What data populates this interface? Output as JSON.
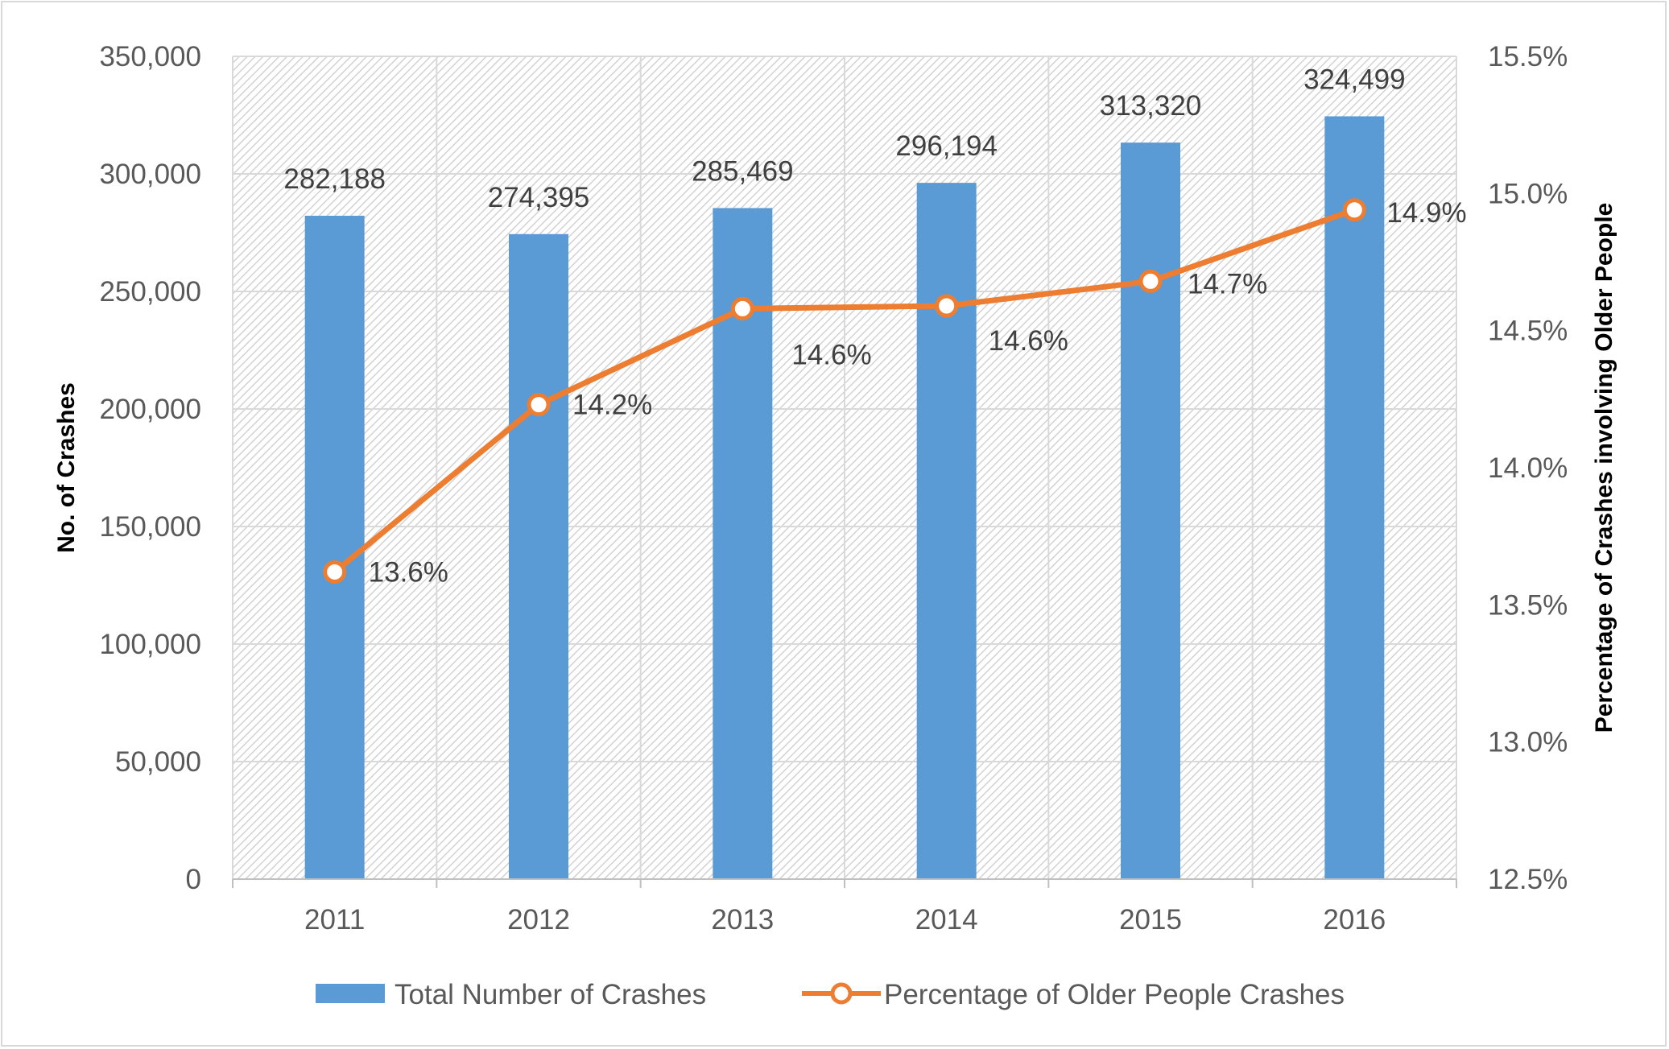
{
  "chart_data": {
    "type": "bar",
    "categories": [
      "2011",
      "2012",
      "2013",
      "2014",
      "2015",
      "2016"
    ],
    "series": [
      {
        "name": "Total Number of Crashes",
        "type": "bar",
        "axis": "left",
        "values": [
          282188,
          274395,
          285469,
          296194,
          313320,
          324499
        ],
        "labels": [
          "282,188",
          "274,395",
          "285,469",
          "296,194",
          "313,320",
          "324,499"
        ],
        "color": "#5b9bd5"
      },
      {
        "name": "Percentage of Older People Crashes",
        "type": "line",
        "axis": "right",
        "values": [
          13.62,
          14.23,
          14.58,
          14.59,
          14.68,
          14.94
        ],
        "labels": [
          "13.6%",
          "14.2%",
          "14.6%",
          "14.6%",
          "14.7%",
          "14.9%"
        ],
        "color": "#ed7d31"
      }
    ],
    "ylabel": "No. of Crashes",
    "y2label": "Percentage of Crashes involving Older People",
    "ylim": [
      0,
      350000
    ],
    "y2lim": [
      12.5,
      15.5
    ],
    "yticks": [
      "0",
      "50,000",
      "100,000",
      "150,000",
      "200,000",
      "250,000",
      "300,000",
      "350,000"
    ],
    "y2ticks": [
      "12.5%",
      "13.0%",
      "13.5%",
      "14.0%",
      "14.5%",
      "15.0%",
      "15.5%"
    ],
    "grid": true,
    "legend": "bottom"
  }
}
